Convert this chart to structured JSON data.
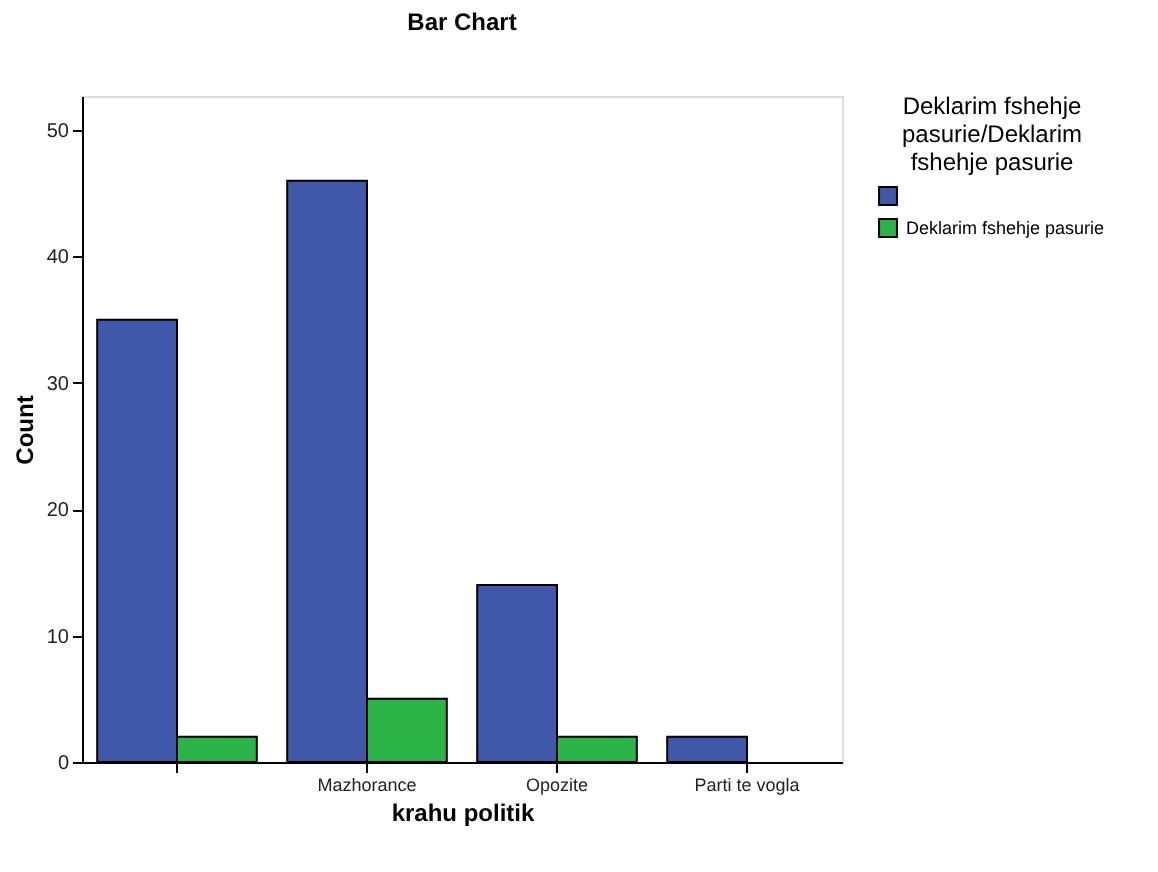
{
  "chart_data": {
    "type": "bar",
    "title": "Bar Chart",
    "xlabel": "krahu politik",
    "ylabel": "Count",
    "legend_title": "Deklarim fshehje pasurie/Deklarim fshehje pasurie",
    "categories": [
      null,
      "Mazhorance",
      "Opozite",
      "Parti te vogla"
    ],
    "series": [
      {
        "color": "#3f58a9",
        "values": [
          35,
          46,
          14,
          2
        ]
      },
      {
        "name": "Deklarim fshehje pasurie",
        "color": "#2db449",
        "values": [
          2,
          5,
          2,
          null
        ]
      }
    ],
    "ylim": [
      0,
      52.7
    ],
    "yticks": [
      0,
      10,
      20,
      30,
      40,
      50
    ],
    "grid": false,
    "legend": "top right"
  }
}
